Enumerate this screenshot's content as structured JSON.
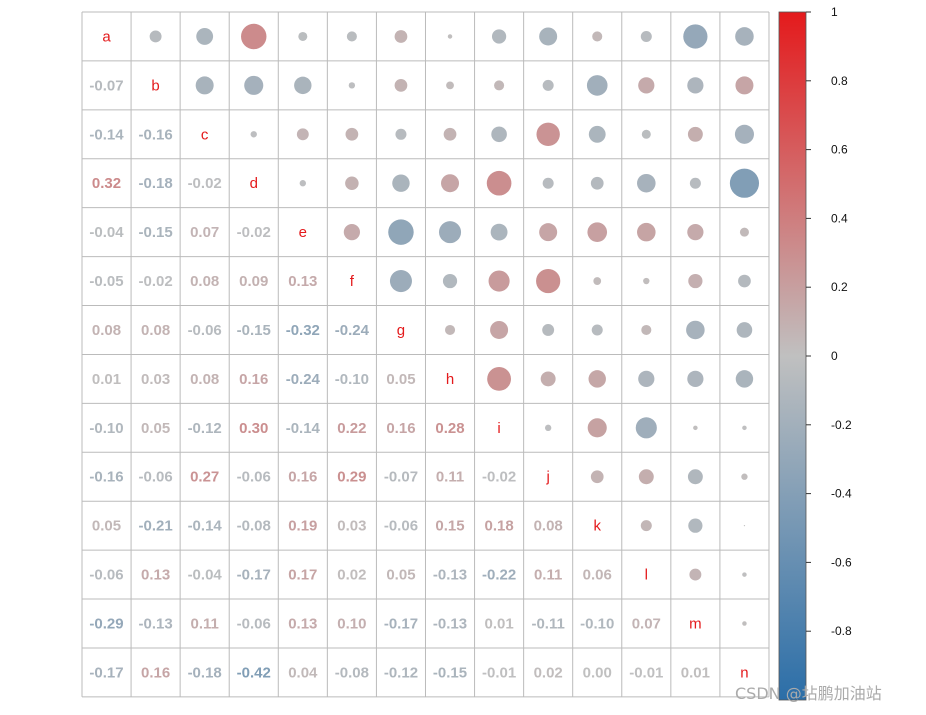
{
  "chart_data": {
    "type": "heatmap",
    "variables": [
      "a",
      "b",
      "c",
      "d",
      "e",
      "f",
      "g",
      "h",
      "i",
      "j",
      "k",
      "l",
      "m",
      "n"
    ],
    "matrix": [
      [
        1.0,
        -0.07,
        -0.14,
        0.32,
        -0.04,
        -0.05,
        0.08,
        0.01,
        -0.1,
        -0.16,
        0.05,
        -0.06,
        -0.29,
        -0.17
      ],
      [
        -0.07,
        1.0,
        -0.16,
        -0.18,
        -0.15,
        -0.02,
        0.08,
        0.03,
        0.05,
        -0.06,
        -0.21,
        0.13,
        -0.13,
        0.16
      ],
      [
        -0.14,
        -0.16,
        1.0,
        -0.02,
        0.07,
        0.08,
        -0.06,
        0.08,
        -0.12,
        0.27,
        -0.14,
        -0.04,
        0.11,
        -0.18
      ],
      [
        0.32,
        -0.18,
        -0.02,
        1.0,
        -0.02,
        0.09,
        -0.15,
        0.16,
        0.3,
        -0.06,
        -0.08,
        -0.17,
        -0.06,
        -0.42
      ],
      [
        -0.04,
        -0.15,
        0.07,
        -0.02,
        1.0,
        0.13,
        -0.32,
        -0.24,
        -0.14,
        0.16,
        0.19,
        0.17,
        0.13,
        0.04
      ],
      [
        -0.05,
        -0.02,
        0.08,
        0.09,
        0.13,
        1.0,
        -0.24,
        -0.1,
        0.22,
        0.29,
        0.03,
        0.02,
        0.1,
        -0.08
      ],
      [
        0.08,
        0.08,
        -0.06,
        -0.15,
        -0.32,
        -0.24,
        1.0,
        0.05,
        0.16,
        -0.07,
        -0.06,
        0.05,
        -0.17,
        -0.12
      ],
      [
        0.01,
        0.03,
        0.08,
        0.16,
        -0.24,
        -0.1,
        0.05,
        1.0,
        0.28,
        0.11,
        0.15,
        -0.13,
        -0.13,
        -0.15
      ],
      [
        -0.1,
        0.05,
        -0.12,
        0.3,
        -0.14,
        0.22,
        0.16,
        0.28,
        1.0,
        -0.02,
        0.18,
        -0.22,
        0.01,
        -0.01
      ],
      [
        -0.16,
        -0.06,
        0.27,
        -0.06,
        0.16,
        0.29,
        -0.07,
        0.11,
        -0.02,
        1.0,
        0.08,
        0.11,
        -0.11,
        0.02
      ],
      [
        0.05,
        -0.21,
        -0.14,
        -0.08,
        0.19,
        0.03,
        -0.06,
        0.15,
        0.18,
        0.08,
        1.0,
        0.06,
        -0.1,
        0.0
      ],
      [
        -0.06,
        0.13,
        -0.04,
        -0.17,
        0.17,
        0.02,
        0.05,
        -0.13,
        -0.22,
        0.11,
        0.06,
        1.0,
        0.07,
        -0.01
      ],
      [
        -0.29,
        -0.13,
        0.11,
        -0.06,
        0.13,
        0.1,
        -0.17,
        -0.13,
        0.01,
        -0.11,
        -0.1,
        0.07,
        1.0,
        0.01
      ],
      [
        -0.17,
        0.16,
        -0.18,
        -0.42,
        0.04,
        -0.08,
        -0.12,
        -0.15,
        -0.01,
        0.02,
        0.0,
        -0.01,
        0.01,
        1.0
      ]
    ],
    "lower_triangle": "numbers",
    "upper_triangle": "circles",
    "diagonal": "variable names",
    "color_range": [
      -1,
      1
    ],
    "colorbar_ticks": [
      1,
      0.8,
      0.6,
      0.4,
      0.2,
      0,
      -0.2,
      -0.4,
      -0.6,
      -0.8
    ],
    "colorbar_tick_labels": [
      "1",
      "0.8",
      "0.6",
      "0.4",
      "0.2",
      "0",
      "-0.2",
      "-0.4",
      "-0.6",
      "-0.8"
    ],
    "colors": {
      "negative": "#2b6ea8",
      "neutral": "#c0c0c0",
      "positive": "#e41a1c",
      "diagonal_label": "#e41a1c",
      "grid": "#bbbbbb"
    },
    "legend": "right"
  },
  "watermark": "CSDN @坫鹏加油站"
}
